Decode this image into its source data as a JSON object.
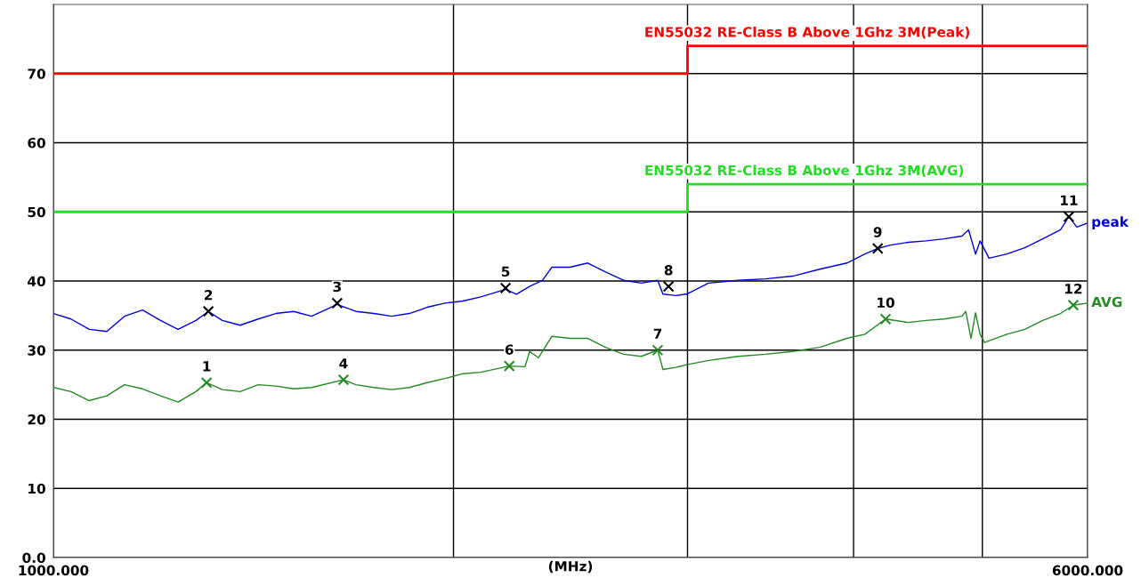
{
  "chart_data": {
    "type": "line",
    "xlabel": "(MHz)",
    "log": "x",
    "grid": true,
    "legend": false,
    "line_style": "solid",
    "xlim": [
      1000,
      6000
    ],
    "ylim": [
      0,
      80
    ],
    "xticks": [
      {
        "value": 1000,
        "label": "1000.000"
      },
      {
        "value": 2000,
        "label": null
      },
      {
        "value": 3000,
        "label": null
      },
      {
        "value": 4000,
        "label": null
      },
      {
        "value": 5000,
        "label": null
      },
      {
        "value": 6000,
        "label": "6000.000"
      }
    ],
    "yticks": [
      {
        "value": 0,
        "label": "0.0"
      },
      10,
      20,
      30,
      40,
      50,
      60,
      70
    ],
    "annotations": [
      {
        "text": "1",
        "x": 1304,
        "y": 25.3
      },
      {
        "text": "2",
        "x": 1308,
        "y": 35.6
      },
      {
        "text": "3",
        "x": 1635,
        "y": 36.8
      },
      {
        "text": "4",
        "x": 1653,
        "y": 25.7
      },
      {
        "text": "5",
        "x": 2189,
        "y": 39.0
      },
      {
        "text": "6",
        "x": 2203,
        "y": 27.7
      },
      {
        "text": "7",
        "x": 2849,
        "y": 30.0
      },
      {
        "text": "8",
        "x": 2903,
        "y": 39.2
      },
      {
        "text": "9",
        "x": 4171,
        "y": 44.7
      },
      {
        "text": "10",
        "x": 4228,
        "y": 34.5
      },
      {
        "text": "11",
        "x": 5808,
        "y": 49.3
      },
      {
        "text": "12",
        "x": 5853,
        "y": 36.5
      }
    ],
    "series": [
      {
        "type": "step",
        "name": "EN55032 RE-Class B Above 1Ghz 3M(Peak)",
        "color": "#ff0000",
        "x": [
          1000,
          3000,
          6000
        ],
        "values": [
          70,
          74,
          74
        ]
      },
      {
        "type": "step",
        "name": "EN55032 RE-Class B Above 1Ghz 3M(AVG)",
        "color": "#22dd22",
        "x": [
          1000,
          3000,
          6000
        ],
        "values": [
          50,
          54,
          54
        ]
      },
      {
        "name": "peak",
        "color": "#0000dd",
        "x": [
          1000,
          1031,
          1064,
          1097,
          1131,
          1167,
          1204,
          1241,
          1280,
          1308,
          1340,
          1382,
          1426,
          1470,
          1516,
          1564,
          1635,
          1689,
          1742,
          1797,
          1853,
          1911,
          1971,
          2033,
          2097,
          2189,
          2230,
          2282,
          2334,
          2372,
          2447,
          2524,
          2603,
          2685,
          2769,
          2849,
          2875,
          2941,
          2995,
          3111,
          3275,
          3434,
          3599,
          3772,
          3954,
          4080,
          4171,
          4263,
          4397,
          4536,
          4679,
          4826,
          4882,
          4941,
          4980,
          5058,
          5217,
          5381,
          5551,
          5725,
          5808,
          5889,
          6000
        ],
        "values": [
          35.3,
          34.5,
          33.0,
          32.7,
          34.9,
          35.8,
          34.3,
          33.0,
          34.3,
          35.6,
          34.3,
          33.6,
          34.5,
          35.3,
          35.6,
          34.9,
          36.6,
          35.6,
          35.3,
          34.9,
          35.3,
          36.2,
          36.8,
          37.1,
          37.7,
          38.8,
          38.1,
          39.2,
          40.1,
          42.0,
          42.0,
          42.6,
          41.3,
          40.1,
          39.7,
          40.1,
          38.1,
          37.9,
          38.1,
          39.7,
          40.1,
          40.3,
          40.7,
          41.7,
          42.6,
          43.9,
          44.7,
          45.2,
          45.6,
          45.8,
          46.1,
          46.5,
          47.4,
          43.9,
          45.8,
          43.3,
          43.9,
          44.8,
          46.1,
          47.4,
          49.3,
          47.8,
          48.4
        ]
      },
      {
        "name": "AVG",
        "color": "#228b22",
        "x": [
          1000,
          1031,
          1064,
          1097,
          1131,
          1167,
          1204,
          1241,
          1280,
          1304,
          1340,
          1382,
          1426,
          1470,
          1516,
          1564,
          1653,
          1689,
          1742,
          1797,
          1853,
          1911,
          1971,
          2033,
          2097,
          2203,
          2264,
          2282,
          2317,
          2372,
          2447,
          2524,
          2603,
          2685,
          2769,
          2849,
          2875,
          2941,
          2995,
          3111,
          3275,
          3434,
          3599,
          3772,
          3954,
          4080,
          4228,
          4397,
          4536,
          4679,
          4826,
          4858,
          4903,
          4941,
          4980,
          5018,
          5217,
          5381,
          5551,
          5725,
          5853,
          6000
        ],
        "values": [
          24.6,
          24.0,
          22.7,
          23.4,
          25.0,
          24.4,
          23.4,
          22.5,
          24.0,
          25.3,
          24.3,
          24.0,
          25.0,
          24.8,
          24.4,
          24.6,
          25.7,
          25.0,
          24.6,
          24.3,
          24.6,
          25.3,
          25.9,
          26.6,
          26.8,
          27.7,
          27.6,
          29.8,
          28.9,
          32.0,
          31.7,
          31.7,
          30.4,
          29.4,
          29.1,
          30.0,
          27.2,
          27.5,
          27.9,
          28.5,
          29.1,
          29.4,
          29.8,
          30.4,
          31.7,
          32.3,
          34.5,
          34.0,
          34.3,
          34.5,
          34.9,
          35.6,
          31.7,
          35.4,
          32.3,
          31.1,
          32.3,
          33.0,
          34.3,
          35.3,
          36.5,
          36.8
        ]
      },
      {
        "type": "scatter",
        "marker": "cross",
        "color": "#000000",
        "x": [
          1308,
          1635,
          2189,
          2903,
          4171,
          5808
        ],
        "values": [
          35.6,
          36.8,
          39.0,
          39.2,
          44.7,
          49.3
        ]
      },
      {
        "type": "scatter",
        "marker": "cross",
        "color": "#228b22",
        "x": [
          1304,
          1653,
          2203,
          2849,
          4228,
          5853
        ],
        "values": [
          25.3,
          25.7,
          27.7,
          30.0,
          34.5,
          36.5
        ]
      }
    ]
  }
}
